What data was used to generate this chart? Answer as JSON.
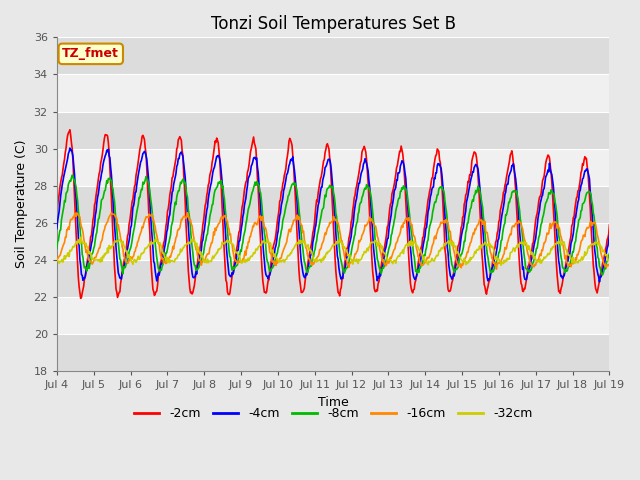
{
  "title": "Tonzi Soil Temperatures Set B",
  "xlabel": "Time",
  "ylabel": "Soil Temperature (C)",
  "ylim": [
    18,
    36
  ],
  "yticks": [
    18,
    20,
    22,
    24,
    26,
    28,
    30,
    32,
    34,
    36
  ],
  "x_tick_labels": [
    "Jul 4",
    "Jul 5",
    "Jul 6",
    "Jul 7",
    "Jul 8",
    "Jul 9",
    "Jul 10",
    "Jul 11",
    "Jul 12",
    "Jul 13",
    "Jul 14",
    "Jul 15",
    "Jul 16",
    "Jul 17",
    "Jul 18",
    "Jul 19"
  ],
  "series_colors": [
    "#ff0000",
    "#0000ff",
    "#00bb00",
    "#ff8800",
    "#cccc00"
  ],
  "series_labels": [
    "-2cm",
    "-4cm",
    "-8cm",
    "-16cm",
    "-32cm"
  ],
  "annotation_text": "TZ_fmet",
  "annotation_bg": "#ffffcc",
  "annotation_border": "#cc8800",
  "annotation_text_color": "#cc0000",
  "bg_color": "#e8e8e8",
  "plot_bg_light": "#f0f0f0",
  "plot_bg_dark": "#dcdcdc",
  "grid_color": "#ffffff",
  "title_fontsize": 12,
  "axis_label_fontsize": 9,
  "tick_fontsize": 8,
  "legend_fontsize": 9,
  "line_width": 1.2,
  "n_points": 720,
  "amplitudes": [
    4.5,
    3.5,
    2.5,
    1.3,
    0.55
  ],
  "mean_temps": [
    26.5,
    26.5,
    26.0,
    25.2,
    24.5
  ],
  "phase_offsets_hours": [
    0.0,
    1.2,
    2.8,
    5.5,
    9.0
  ],
  "trend_slopes": [
    -0.04,
    -0.04,
    -0.035,
    -0.025,
    -0.008
  ],
  "amplitude_decay_per_day": [
    0.015,
    0.012,
    0.01,
    0.008,
    0.004
  ],
  "sharpness": [
    3.5,
    2.5,
    2.0,
    1.5,
    1.2
  ]
}
